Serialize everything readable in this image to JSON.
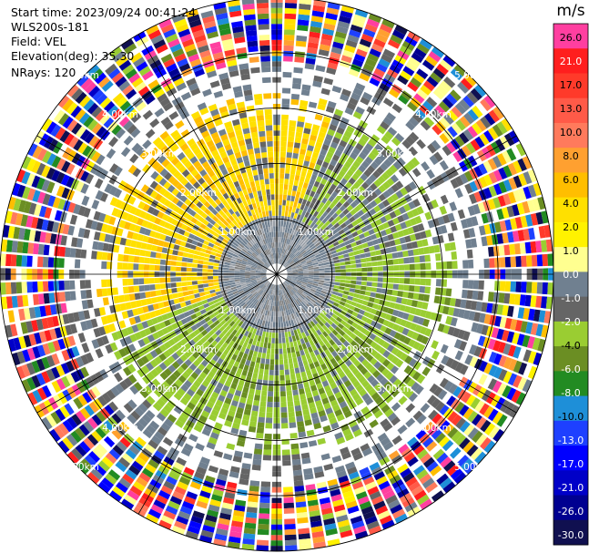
{
  "header": {
    "start_time": "Start time: 2023/09/24 00:41:24",
    "instrument": "WLS200s-181",
    "field": "Field: VEL",
    "elevation": "Elevation(deg): 35.30",
    "nrays": "NRays: 120"
  },
  "chart_data": {
    "type": "ppi",
    "field": "VEL",
    "units": "m/s",
    "nrays": 120,
    "elevation_deg": 35.3,
    "range_rings_km": [
      1.0,
      2.0,
      3.0,
      4.0,
      5.0
    ],
    "ring_labels": [
      "1.00km",
      "2.00km",
      "3.00km",
      "4.00km",
      "5.00km"
    ],
    "max_range_km": 5.0,
    "colorbar": {
      "title": "m/s",
      "ticks": [
        "26.0",
        "21.0",
        "17.0",
        "13.0",
        "10.0",
        "8.0",
        "6.0",
        "4.0",
        "2.0",
        "1.0",
        "0.0",
        "-1.0",
        "-2.0",
        "-4.0",
        "-6.0",
        "-8.0",
        "-10.0",
        "-13.0",
        "-17.0",
        "-21.0",
        "-26.0",
        "-30.0"
      ],
      "colors": [
        "#ff3fa0",
        "#ff1e1e",
        "#ff3a2a",
        "#ff5a48",
        "#ff7a5c",
        "#ffa030",
        "#ffbe00",
        "#ffe000",
        "#fff200",
        "#ffff90",
        "#708090",
        "#656565",
        "#9acd32",
        "#6b8e23",
        "#228b22",
        "#1e8fd8",
        "#1e40ff",
        "#0000ff",
        "#0000c8",
        "#000090",
        "#101050"
      ]
    },
    "regions": {
      "near_core_km": 1.0,
      "yellow_sector_deg": [
        250,
        20
      ],
      "clean_data_max_km": 3.2,
      "noise_start_km": 3.8
    }
  }
}
